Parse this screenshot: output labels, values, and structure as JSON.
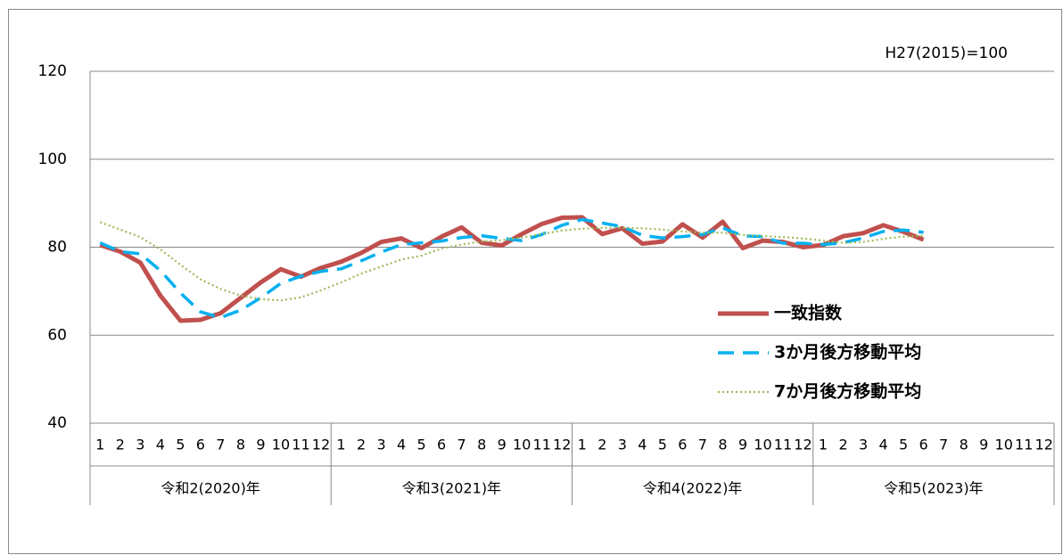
{
  "chart_data": {
    "type": "line",
    "annotation": "H27(2015)=100",
    "categories": [
      "1",
      "2",
      "3",
      "4",
      "5",
      "6",
      "7",
      "8",
      "9",
      "10",
      "11",
      "12",
      "1",
      "2",
      "3",
      "4",
      "5",
      "6",
      "7",
      "8",
      "9",
      "10",
      "11",
      "12",
      "1",
      "2",
      "3",
      "4",
      "5",
      "6",
      "7",
      "8",
      "9",
      "10",
      "11",
      "12",
      "1",
      "2",
      "3",
      "4",
      "5",
      "6",
      "7",
      "8",
      "9",
      "10",
      "11",
      "12"
    ],
    "groups": [
      "令和2(2020)年",
      "令和3(2021)年",
      "令和4(2022)年",
      "令和5(2023)年"
    ],
    "series": [
      {
        "name": "一致指数",
        "color": "#c0504d",
        "style": "solid",
        "values": [
          80.5,
          79,
          76.5,
          69,
          63.3,
          63.5,
          65,
          68.5,
          72,
          75,
          73.3,
          75.3,
          76.7,
          78.7,
          81.2,
          82,
          79.8,
          82.4,
          84.5,
          81,
          80.4,
          83,
          85.3,
          86.7,
          86.8,
          83,
          84.3,
          80.8,
          81.3,
          85.2,
          82.2,
          85.8,
          79.8,
          81.5,
          81.2,
          80,
          80.5,
          82.5,
          83.2,
          85,
          83.5,
          81.7,
          null,
          null,
          null,
          null,
          null,
          null
        ]
      },
      {
        "name": "3か月後方移動平均",
        "color": "#00b0f0",
        "style": "dashed",
        "values": [
          81,
          79,
          78.5,
          74.7,
          69.6,
          65.3,
          64,
          65.7,
          68.5,
          71.8,
          73.4,
          74.5,
          75.1,
          76.9,
          78.9,
          80.6,
          81,
          81.4,
          82.2,
          82.6,
          82,
          81.5,
          82.9,
          85,
          86.3,
          85.5,
          84.7,
          82.7,
          82.1,
          82.4,
          82.9,
          84.4,
          82.6,
          82.4,
          80.9,
          80.9,
          80.6,
          81,
          82.1,
          83.6,
          83.9,
          83.4,
          null,
          null,
          null,
          null,
          null,
          null
        ]
      },
      {
        "name": "7か月後方移動平均",
        "color": "#9bbb59",
        "style": "dotted",
        "values": [
          85.7,
          84,
          82.3,
          79.5,
          76,
          72.7,
          70.5,
          69,
          68.2,
          67.9,
          68.6,
          70.2,
          72,
          74,
          75.6,
          77.2,
          78.1,
          79.7,
          80.6,
          81.3,
          81.6,
          82.2,
          83,
          83.8,
          84.2,
          84.4,
          84.4,
          84.3,
          84,
          83.6,
          83.3,
          83.3,
          82.8,
          82.5,
          82.3,
          82,
          81.5,
          81,
          81.2,
          81.9,
          82.4,
          82.6,
          null,
          null,
          null,
          null,
          null,
          null
        ]
      }
    ],
    "ylim": [
      40,
      120
    ],
    "yticks": [
      40,
      60,
      80,
      100,
      120
    ],
    "grid": true,
    "legend": "center right"
  }
}
